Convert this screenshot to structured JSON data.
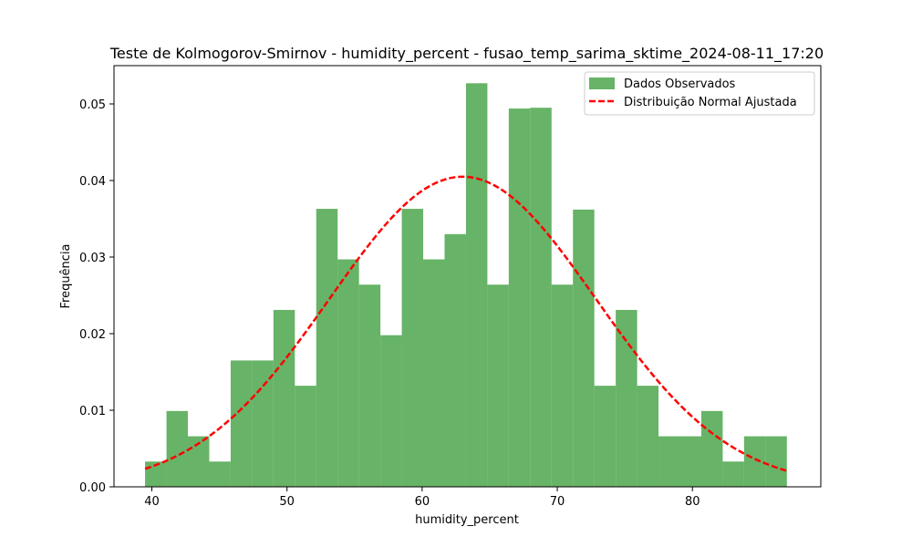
{
  "chart_data": {
    "type": "bar",
    "title": "Teste de Kolmogorov-Smirnov - humidity_percent - fusao_temp_sarima_sktime_2024-08-11_17:20",
    "xlabel": "humidity_percent",
    "ylabel": "Frequência",
    "xlim": [
      37.2,
      89.5
    ],
    "ylim": [
      0,
      0.055
    ],
    "x_ticks": [
      40,
      50,
      60,
      70,
      80
    ],
    "x_tick_labels": [
      "40",
      "50",
      "60",
      "70",
      "80"
    ],
    "y_ticks": [
      0,
      0.01,
      0.02,
      0.03,
      0.04,
      0.05
    ],
    "y_tick_labels": [
      "0.00",
      "0.01",
      "0.02",
      "0.03",
      "0.04",
      "0.05"
    ],
    "grid": false,
    "legend_position": "top-right",
    "series": [
      {
        "name": "Dados Observados",
        "kind": "histogram",
        "color": "#4CA64C",
        "bin_start": 39.5,
        "bin_width": 1.583,
        "values": [
          0.0033,
          0.0099,
          0.0066,
          0.0033,
          0.0165,
          0.0165,
          0.0231,
          0.0132,
          0.0363,
          0.0297,
          0.0264,
          0.0198,
          0.0363,
          0.0297,
          0.033,
          0.0527,
          0.0264,
          0.0494,
          0.0495,
          0.0264,
          0.0362,
          0.0132,
          0.0231,
          0.0132,
          0.0066,
          0.0066,
          0.0099,
          0.0033,
          0.0066,
          0.0066
        ]
      },
      {
        "name": "Distribuição Normal Ajustada",
        "kind": "line",
        "color": "#FF0000",
        "style": "dashed",
        "mean": 63.0,
        "std": 9.85,
        "x_range": [
          39.5,
          87.0
        ]
      }
    ]
  }
}
